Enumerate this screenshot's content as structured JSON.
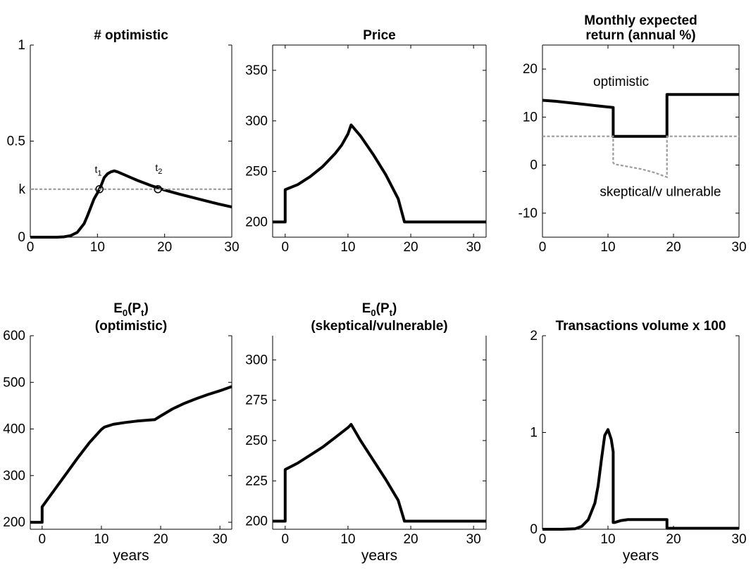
{
  "chart_data": [
    {
      "id": "optimistic",
      "type": "line",
      "title": [
        "# optimistic"
      ],
      "xlabel": "",
      "xlim": [
        0,
        30
      ],
      "ylim": [
        0,
        1
      ],
      "xticks": [
        0,
        10,
        20,
        30
      ],
      "yticks": [
        {
          "v": 0,
          "label": "0"
        },
        {
          "v": 0.25,
          "label": "k"
        },
        {
          "v": 0.5,
          "label": "0.5"
        },
        {
          "v": 1,
          "label": "1"
        }
      ],
      "box_top": false,
      "series": [
        {
          "style": "solid",
          "x": [
            0,
            2,
            4,
            5,
            6,
            7,
            8,
            8.5,
            9,
            9.5,
            10,
            10.5,
            11,
            11.5,
            12,
            12.5,
            13,
            14,
            15,
            16,
            18,
            19,
            20,
            22,
            24,
            26,
            28,
            30
          ],
          "y": [
            0,
            0,
            0,
            0.002,
            0.008,
            0.025,
            0.07,
            0.11,
            0.155,
            0.2,
            0.23,
            0.265,
            0.31,
            0.33,
            0.34,
            0.345,
            0.34,
            0.325,
            0.31,
            0.295,
            0.268,
            0.257,
            0.245,
            0.226,
            0.208,
            0.19,
            0.173,
            0.157
          ]
        },
        {
          "style": "dashed",
          "x": [
            0,
            30
          ],
          "y": [
            0.25,
            0.25
          ]
        }
      ],
      "markers": [
        {
          "x": 10.3,
          "y": 0.25
        },
        {
          "x": 19,
          "y": 0.25
        }
      ],
      "annotations": [
        {
          "text": "t",
          "sub": "1",
          "x": 9.6,
          "y": 0.335
        },
        {
          "text": "t",
          "sub": "2",
          "x": 18.6,
          "y": 0.345
        }
      ]
    },
    {
      "id": "price",
      "type": "line",
      "title": [
        "Price"
      ],
      "xlabel": "",
      "xlim": [
        -2,
        32
      ],
      "ylim": [
        185,
        375
      ],
      "xticks": [
        0,
        10,
        20,
        30
      ],
      "yticks": [
        {
          "v": 200,
          "label": "200"
        },
        {
          "v": 250,
          "label": "250"
        },
        {
          "v": 300,
          "label": "300"
        },
        {
          "v": 350,
          "label": "350"
        }
      ],
      "series": [
        {
          "style": "solid",
          "x": [
            -2,
            0,
            0,
            2,
            4,
            6,
            8,
            9,
            10,
            10.5,
            12,
            14,
            16,
            18,
            19,
            20,
            25,
            32
          ],
          "y": [
            200,
            200,
            232,
            237,
            245,
            255,
            268,
            276,
            287,
            296,
            285,
            267,
            247,
            223,
            200,
            200,
            200,
            200
          ]
        }
      ]
    },
    {
      "id": "return",
      "type": "line",
      "title": [
        "Monthly expected",
        "return (annual %)"
      ],
      "xlabel": "",
      "xlim": [
        0,
        30
      ],
      "ylim": [
        -15,
        25
      ],
      "xticks": [
        0,
        10,
        20,
        30
      ],
      "yticks": [
        {
          "v": -10,
          "label": "-10"
        },
        {
          "v": 0,
          "label": "0"
        },
        {
          "v": 10,
          "label": "10"
        },
        {
          "v": 20,
          "label": "20"
        }
      ],
      "series": [
        {
          "style": "solid",
          "x": [
            0,
            2,
            4,
            6,
            8,
            10,
            10.8,
            10.8,
            19,
            19,
            22,
            26,
            30
          ],
          "y": [
            13.5,
            13.3,
            13,
            12.7,
            12.4,
            12.1,
            12,
            6,
            6,
            14.7,
            14.7,
            14.7,
            14.7
          ]
        },
        {
          "style": "dashed",
          "x": [
            0,
            10.8,
            10.8,
            11,
            13,
            15,
            17,
            19,
            19,
            30
          ],
          "y": [
            6,
            6,
            0.5,
            0.2,
            -0.3,
            -0.8,
            -1.5,
            -2.5,
            6,
            6
          ]
        }
      ],
      "annotations": [
        {
          "text": "optimistic",
          "x": 12,
          "y": 16.5
        },
        {
          "text": "skeptical/v ulnerable",
          "x": 18,
          "y": -6.4
        }
      ]
    },
    {
      "id": "e0_optimistic",
      "type": "line",
      "title": [
        "E_0(P_t)",
        "(optimistic)"
      ],
      "xlabel": "years",
      "xlim": [
        -2,
        32
      ],
      "ylim": [
        185,
        600
      ],
      "xticks": [
        0,
        10,
        20,
        30
      ],
      "yticks": [
        {
          "v": 200,
          "label": "200"
        },
        {
          "v": 300,
          "label": "300"
        },
        {
          "v": 400,
          "label": "400"
        },
        {
          "v": 500,
          "label": "500"
        },
        {
          "v": 600,
          "label": "600"
        }
      ],
      "box_top": false,
      "series": [
        {
          "style": "solid",
          "x": [
            -2,
            0,
            0,
            2,
            4,
            6,
            8,
            10,
            10.5,
            12,
            14,
            16,
            18,
            19,
            20,
            22,
            24,
            26,
            28,
            30,
            32
          ],
          "y": [
            200,
            200,
            233,
            268,
            303,
            338,
            371,
            399,
            404,
            410,
            414,
            417,
            419,
            420,
            428,
            443,
            455,
            465,
            474,
            482,
            491
          ]
        }
      ]
    },
    {
      "id": "e0_skeptical",
      "type": "line",
      "title": [
        "E_0(P_t)",
        "(skeptical/vulnerable)"
      ],
      "xlabel": "years",
      "xlim": [
        -2,
        32
      ],
      "ylim": [
        195,
        315
      ],
      "xticks": [
        0,
        10,
        20,
        30
      ],
      "yticks": [
        {
          "v": 200,
          "label": "200"
        },
        {
          "v": 225,
          "label": "225"
        },
        {
          "v": 250,
          "label": "250"
        },
        {
          "v": 275,
          "label": "275"
        },
        {
          "v": 300,
          "label": "300"
        }
      ],
      "box_top": false,
      "series": [
        {
          "style": "solid",
          "x": [
            -2,
            0,
            0,
            2,
            4,
            6,
            8,
            10,
            10.5,
            12,
            14,
            16,
            18,
            19,
            20,
            25,
            32
          ],
          "y": [
            200,
            200,
            232,
            236,
            241,
            246,
            252,
            258,
            260,
            250,
            238,
            226,
            213,
            200,
            200,
            200,
            200
          ]
        }
      ]
    },
    {
      "id": "volume",
      "type": "line",
      "title": [
        "Transactions volume x 100"
      ],
      "xlabel": "years",
      "xlim": [
        0,
        30
      ],
      "ylim": [
        0,
        2
      ],
      "xticks": [
        0,
        10,
        20,
        30
      ],
      "yticks": [
        {
          "v": 0,
          "label": "0"
        },
        {
          "v": 1,
          "label": "1"
        },
        {
          "v": 2,
          "label": "2"
        }
      ],
      "box_top": false,
      "series": [
        {
          "style": "solid",
          "x": [
            0,
            3,
            5,
            6,
            7,
            8,
            8.5,
            9,
            9.5,
            10,
            10.5,
            10.8,
            10.8,
            11,
            12,
            13,
            15,
            17,
            19,
            19,
            20,
            25,
            30
          ],
          "y": [
            0,
            0,
            0.005,
            0.03,
            0.1,
            0.27,
            0.45,
            0.72,
            0.97,
            1.03,
            0.93,
            0.8,
            0.07,
            0.07,
            0.09,
            0.1,
            0.1,
            0.1,
            0.1,
            0.01,
            0.01,
            0.01,
            0.01
          ]
        }
      ]
    }
  ]
}
